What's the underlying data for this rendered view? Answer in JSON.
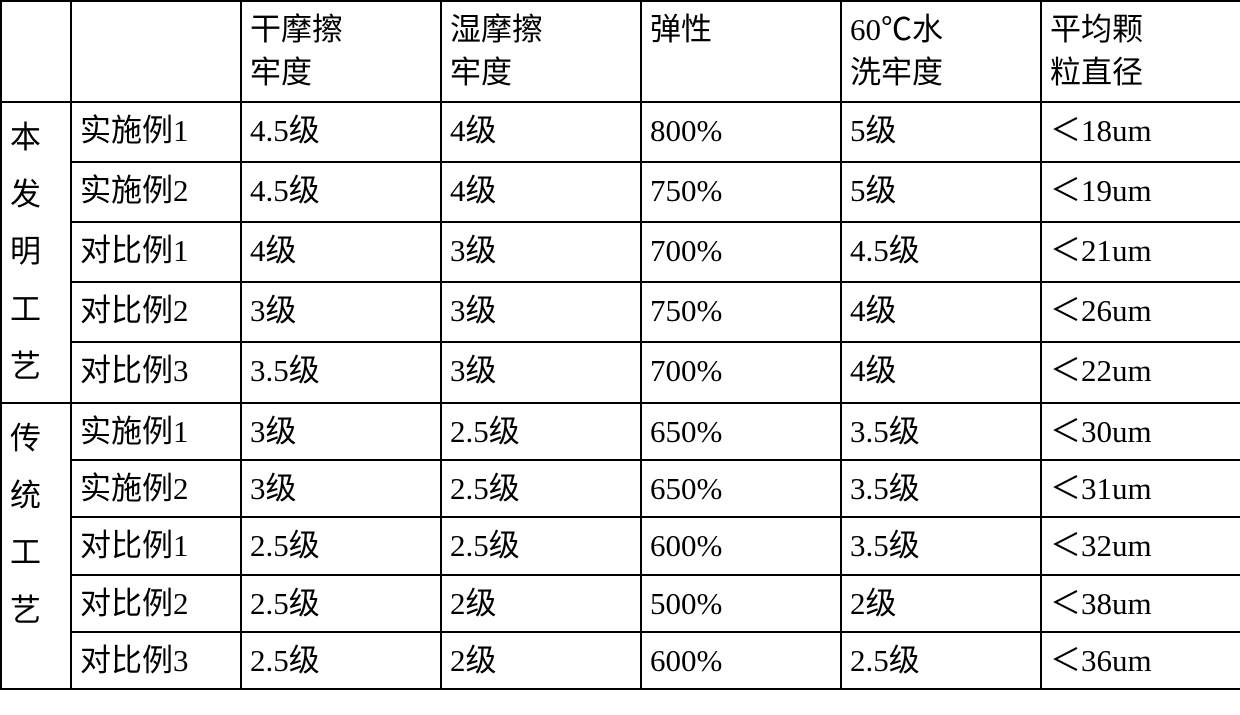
{
  "table": {
    "columns": [
      "干摩擦牢度",
      "湿摩擦牢度",
      "弹性",
      "60℃水洗牢度",
      "平均颗粒直径"
    ],
    "column_breaks": [
      [
        "干摩擦",
        "牢度"
      ],
      [
        "湿摩擦",
        "牢度"
      ],
      [
        "弹性"
      ],
      [
        "60℃水",
        "洗牢度"
      ],
      [
        "平均颗",
        "粒直径"
      ]
    ],
    "groups": [
      {
        "label": "本发明工艺",
        "label_chars": [
          "本",
          "发",
          "明",
          "工",
          "艺"
        ],
        "rows": [
          {
            "case": "实施例1",
            "values": [
              "4.5级",
              "4级",
              "800%",
              "5级",
              "＜18um"
            ]
          },
          {
            "case": "实施例2",
            "values": [
              "4.5级",
              "4级",
              "750%",
              "5级",
              "＜19um"
            ]
          },
          {
            "case": "对比例1",
            "values": [
              "4级",
              "3级",
              "700%",
              "4.5级",
              "＜21um"
            ]
          },
          {
            "case": "对比例2",
            "values": [
              "3级",
              "3级",
              "750%",
              "4级",
              "＜26um"
            ]
          },
          {
            "case": "对比例3",
            "values": [
              "3.5级",
              "3级",
              "700%",
              "4级",
              "＜22um"
            ]
          }
        ]
      },
      {
        "label": "传统工艺",
        "label_chars": [
          "传",
          "统",
          "工",
          "艺"
        ],
        "rows": [
          {
            "case": "实施例1",
            "values": [
              "3级",
              "2.5级",
              "650%",
              "3.5级",
              "＜30um"
            ]
          },
          {
            "case": "实施例2",
            "values": [
              "3级",
              "2.5级",
              "650%",
              "3.5级",
              "＜31um"
            ]
          },
          {
            "case": "对比例1",
            "values": [
              "2.5级",
              "2.5级",
              "600%",
              "3.5级",
              "＜32um"
            ]
          },
          {
            "case": "对比例2",
            "values": [
              "2.5级",
              "2级",
              "500%",
              "2级",
              "＜38um"
            ]
          },
          {
            "case": "对比例3",
            "values": [
              "2.5级",
              "2级",
              "600%",
              "2.5级",
              "＜36um"
            ]
          }
        ]
      }
    ],
    "border_color": "#000000",
    "text_color": "#000000",
    "font_family": "SimSun",
    "font_size_pt": 24
  }
}
